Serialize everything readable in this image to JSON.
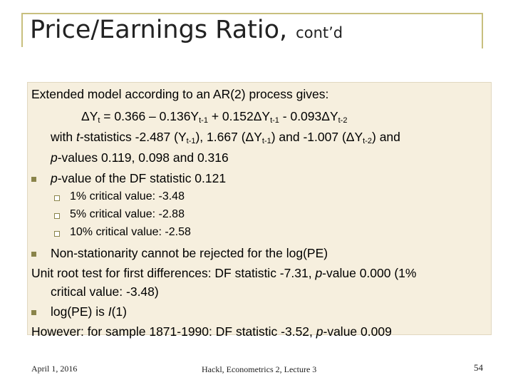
{
  "title": {
    "main": "Price/Earnings Ratio,",
    "sub": "cont’d"
  },
  "lines": {
    "l1": "Extended model according to an AR(2) process gives:",
    "eq_a": "ΔY",
    "eq_a_sub": "t",
    "eq_b": " = 0.366 – 0.136Y",
    "eq_b_sub": "t-1",
    "eq_c": " + 0.152ΔY",
    "eq_c_sub": "t-1",
    "eq_d": " - 0.093ΔY",
    "eq_d_sub": "t-2",
    "ts_a": "with ",
    "ts_t": "t",
    "ts_b": "-statistics -2.487 (Y",
    "ts_b_sub": "t-1",
    "ts_c": "), 1.667 (ΔY",
    "ts_c_sub": "t-1",
    "ts_d": ") and -1.007 (ΔY",
    "ts_d_sub": "t-2",
    "ts_e": ") and",
    "pv_p": "p",
    "pv_b": "-values 0.119, 0.098 and 0.316",
    "df_p": "p",
    "df_b": "-value of the DF statistic 0.121",
    "c1": "1% critical value: -3.48",
    "c2": "5% critical value: -2.88",
    "c3": "10% critical value: -2.58",
    "ns": "Non-stationarity cannot be rejected for the log(PE)",
    "ur_a": "Unit root test for first differences: DF statistic -7.31, ",
    "ur_p": "p",
    "ur_b": "-value 0.000 (1%",
    "ur2": "critical value: -3.48)",
    "lp_a": "log(PE) is ",
    "lp_i": "I",
    "lp_b": "(1)",
    "hw_a": "However: for sample 1871-1990: DF statistic -3.52, ",
    "hw_p": "p",
    "hw_b": "-value 0.009"
  },
  "footer": {
    "date": "April 1, 2016",
    "center": "Hackl, Econometrics 2, Lecture 3",
    "page": "54"
  }
}
